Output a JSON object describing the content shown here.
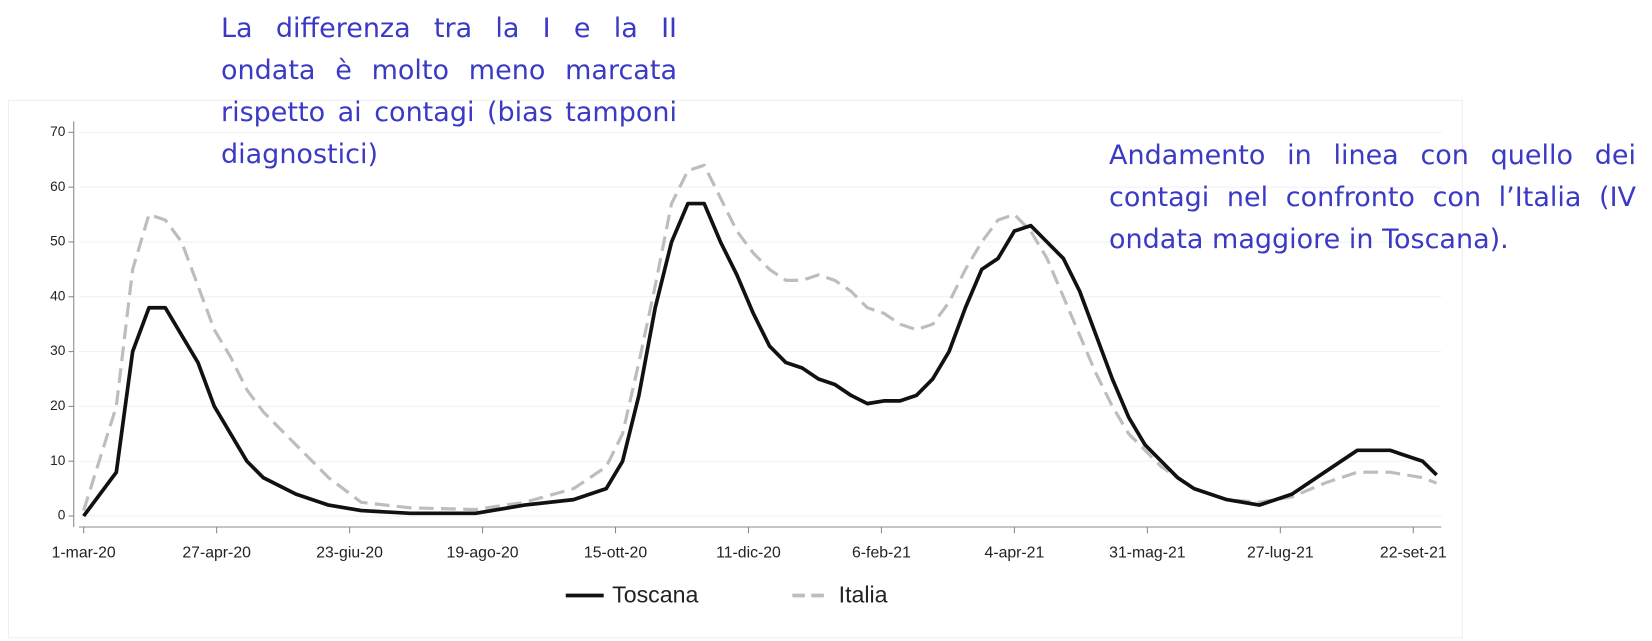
{
  "chart_data": {
    "type": "line",
    "annotations": [
      "La differenza tra la I e la II ondata è molto meno marcata rispetto ai contagi (bias tamponi diagnostici)",
      "Andamento in linea con quello dei contagi nel confronto con l’Italia (IV ondata maggiore in Toscana)."
    ],
    "x": [
      "2020-03-01",
      "2020-03-15",
      "2020-03-22",
      "2020-03-29",
      "2020-04-05",
      "2020-04-12",
      "2020-04-19",
      "2020-04-26",
      "2020-05-03",
      "2020-05-10",
      "2020-05-17",
      "2020-05-31",
      "2020-06-14",
      "2020-06-28",
      "2020-07-19",
      "2020-08-16",
      "2020-09-06",
      "2020-09-27",
      "2020-10-11",
      "2020-10-18",
      "2020-10-25",
      "2020-11-01",
      "2020-11-08",
      "2020-11-15",
      "2020-11-22",
      "2020-11-29",
      "2020-12-06",
      "2020-12-13",
      "2020-12-20",
      "2020-12-27",
      "2021-01-03",
      "2021-01-10",
      "2021-01-17",
      "2021-01-24",
      "2021-01-31",
      "2021-02-07",
      "2021-02-14",
      "2021-02-21",
      "2021-02-28",
      "2021-03-07",
      "2021-03-14",
      "2021-03-21",
      "2021-03-28",
      "2021-04-04",
      "2021-04-11",
      "2021-04-18",
      "2021-04-25",
      "2021-05-02",
      "2021-05-09",
      "2021-05-16",
      "2021-05-23",
      "2021-05-30",
      "2021-06-06",
      "2021-06-13",
      "2021-06-20",
      "2021-07-04",
      "2021-07-18",
      "2021-08-01",
      "2021-08-15",
      "2021-08-29",
      "2021-09-12",
      "2021-09-26",
      "2021-10-02"
    ],
    "series": [
      {
        "name": "Toscana",
        "color": "#111111",
        "line_style": "solid",
        "values": [
          0,
          8,
          30,
          38,
          38,
          33,
          28,
          20,
          15,
          10,
          7,
          4,
          2,
          1,
          0.5,
          0.5,
          2,
          3,
          5,
          10,
          22,
          38,
          50,
          57,
          57,
          50,
          44,
          37,
          31,
          28,
          27,
          25,
          24,
          22,
          20.5,
          21,
          21,
          22,
          25,
          30,
          38,
          45,
          47,
          52,
          53,
          50,
          47,
          41,
          33,
          25,
          18,
          13,
          10,
          7,
          5,
          3,
          2,
          4,
          8,
          12,
          12,
          10,
          7.5
        ]
      },
      {
        "name": "Italia",
        "color": "#bdbdbd",
        "line_style": "dashed",
        "values": [
          1,
          20,
          45,
          55,
          54,
          50,
          42,
          34,
          29,
          23,
          19,
          13,
          7,
          2.5,
          1.5,
          1.2,
          2.5,
          5,
          9,
          15,
          28,
          42,
          57,
          63,
          64,
          58,
          52,
          48,
          45,
          43,
          43,
          44,
          43,
          41,
          38,
          37,
          35,
          34,
          35,
          39,
          45,
          50,
          54,
          55,
          52,
          47,
          40,
          33,
          26,
          20,
          15,
          12,
          9,
          7,
          5,
          3,
          2.5,
          3.5,
          6,
          8,
          8,
          7,
          6
        ]
      }
    ],
    "xlim": [
      "2020-02-28",
      "2021-10-04"
    ],
    "xticks": [
      {
        "value": "2020-03-01",
        "label": "1-mar-20"
      },
      {
        "value": "2020-04-27",
        "label": "27-apr-20"
      },
      {
        "value": "2020-06-23",
        "label": "23-giu-20"
      },
      {
        "value": "2020-08-19",
        "label": "19-ago-20"
      },
      {
        "value": "2020-10-15",
        "label": "15-ott-20"
      },
      {
        "value": "2020-12-11",
        "label": "11-dic-20"
      },
      {
        "value": "2021-02-06",
        "label": "6-feb-21"
      },
      {
        "value": "2021-04-04",
        "label": "4-apr-21"
      },
      {
        "value": "2021-05-31",
        "label": "31-mag-21"
      },
      {
        "value": "2021-07-27",
        "label": "27-lug-21"
      },
      {
        "value": "2021-09-22",
        "label": "22-set-21"
      }
    ],
    "ylim": [
      -2,
      72
    ],
    "yticks": [
      0,
      10,
      20,
      30,
      40,
      50,
      60,
      70
    ],
    "grid": true,
    "legend": "bottom"
  }
}
